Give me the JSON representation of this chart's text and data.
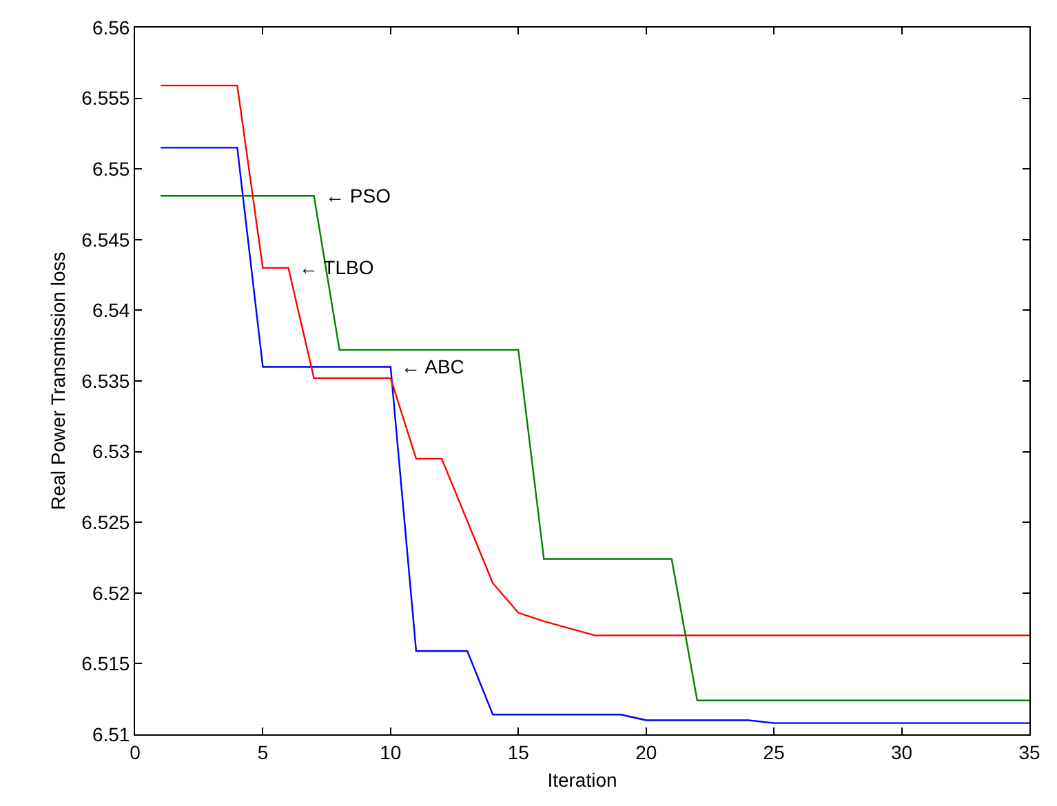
{
  "chart_data": {
    "type": "line",
    "xlabel": "Iteration",
    "ylabel": "Real Power Transmission loss",
    "xlim": [
      0,
      35
    ],
    "xticks": [
      0,
      5,
      10,
      15,
      20,
      25,
      30,
      35
    ],
    "ylim": [
      6.51,
      6.56
    ],
    "yticks": [
      6.51,
      6.515,
      6.52,
      6.525,
      6.53,
      6.535,
      6.54,
      6.545,
      6.55,
      6.555,
      6.56
    ],
    "marker": "none",
    "line_style": "solid",
    "series": [
      {
        "color": "#0000ff",
        "x": [
          1,
          4,
          5,
          10,
          11,
          13,
          14,
          19,
          20,
          24,
          25,
          35
        ],
        "values": [
          6.5515,
          6.5515,
          6.536,
          6.536,
          6.5159,
          6.5159,
          6.5114,
          6.5114,
          6.511,
          6.511,
          6.5108,
          6.5108
        ]
      },
      {
        "color": "#ff0000",
        "x": [
          1,
          4,
          5,
          6,
          7,
          10,
          11,
          12,
          14,
          15,
          16,
          18,
          35
        ],
        "values": [
          6.5559,
          6.5559,
          6.543,
          6.543,
          6.5352,
          6.5352,
          6.5295,
          6.5295,
          6.5207,
          6.5186,
          6.518,
          6.517,
          6.517
        ]
      },
      {
        "color": "#008000",
        "x": [
          1,
          7,
          8,
          15,
          16,
          21,
          22,
          35
        ],
        "values": [
          6.5481,
          6.5481,
          6.5372,
          6.5372,
          6.5224,
          6.5224,
          6.5124,
          6.5124
        ]
      }
    ],
    "annotations": [
      {
        "text": "← PSO",
        "x": 7,
        "y": 6.5481
      },
      {
        "text": "← TLBO",
        "x": 6,
        "y": 6.543
      },
      {
        "text": "← ABC",
        "x": 10,
        "y": 6.536
      }
    ]
  }
}
